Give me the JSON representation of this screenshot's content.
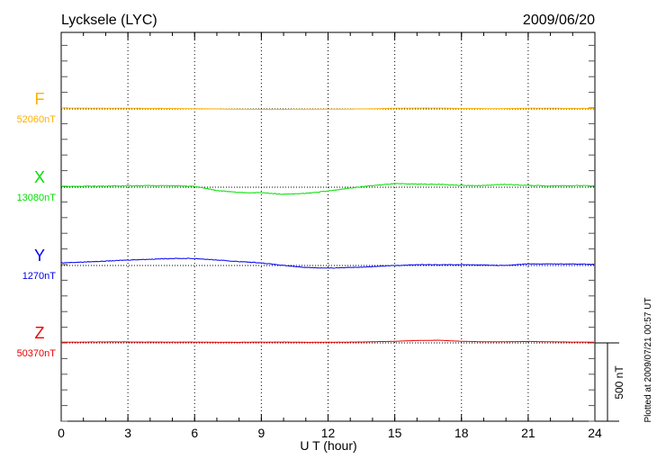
{
  "chart_data": {
    "type": "line",
    "title": "Lycksele (LYC)",
    "date": "2009/06/20",
    "xlabel": "U T (hour)",
    "xlim": [
      0,
      24
    ],
    "xticks": [
      "0",
      "3",
      "6",
      "9",
      "12",
      "15",
      "18",
      "21",
      "24"
    ],
    "scale_bar_label": "500 nT",
    "footer": "Plotted at 2009/07/21 00:57 UT",
    "hours": [
      0,
      1,
      2,
      3,
      4,
      5,
      6,
      7,
      8,
      9,
      10,
      11,
      12,
      13,
      14,
      15,
      16,
      17,
      18,
      19,
      20,
      21,
      22,
      23,
      24
    ],
    "series": [
      {
        "name": "F",
        "baseline_label": "52060nT",
        "color": "#ffb000",
        "values": [
          5,
          5,
          4,
          4,
          3,
          3,
          1,
          0,
          -2,
          -3,
          -3,
          -2,
          -2,
          -1,
          1,
          4,
          5,
          5,
          3,
          2,
          2,
          4,
          4,
          3,
          3
        ]
      },
      {
        "name": "X",
        "baseline_label": "13080nT",
        "color": "#00e000",
        "values": [
          5,
          6,
          7,
          9,
          10,
          9,
          5,
          -20,
          -35,
          -35,
          -45,
          -40,
          -25,
          -5,
          10,
          22,
          20,
          18,
          12,
          10,
          18,
          12,
          8,
          10,
          10
        ]
      },
      {
        "name": "Y",
        "baseline_label": "1270nT",
        "color": "#0000ee",
        "values": [
          17,
          22,
          28,
          35,
          40,
          45,
          45,
          35,
          25,
          17,
          0,
          -12,
          -17,
          -12,
          -8,
          0,
          5,
          5,
          5,
          3,
          0,
          10,
          10,
          10,
          7
        ]
      },
      {
        "name": "Z",
        "baseline_label": "50370nT",
        "color": "#ee0000",
        "values": [
          5,
          5,
          6,
          6,
          5,
          5,
          5,
          4,
          4,
          5,
          5,
          4,
          4,
          5,
          7,
          10,
          15,
          17,
          10,
          7,
          7,
          9,
          7,
          5,
          5
        ]
      }
    ]
  }
}
